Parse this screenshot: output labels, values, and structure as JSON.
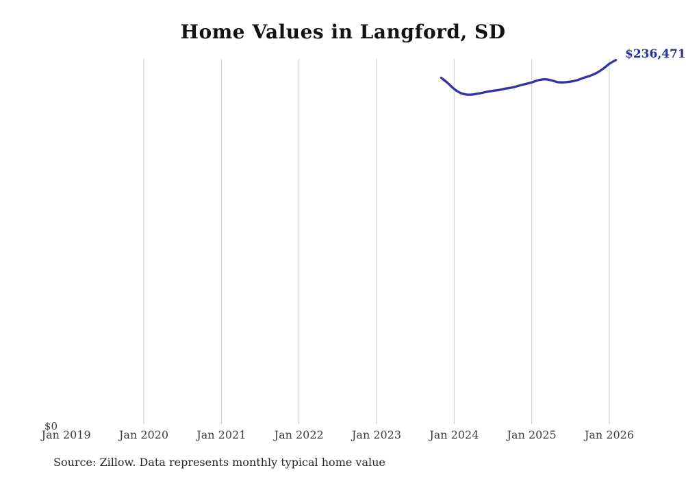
{
  "page": {
    "background": "#ffffff"
  },
  "chart_data": {
    "type": "line",
    "title": "Home Values in Langford, SD",
    "source_note": "Source: Zillow. Data represents monthly typical home value",
    "x_tick_labels": [
      "Jan 2019",
      "Jan 2020",
      "Jan 2021",
      "Jan 2022",
      "Jan 2023",
      "Jan 2024",
      "Jan 2025",
      "Jan 2026"
    ],
    "y_zero_label": "$0",
    "end_label": "$236,471",
    "grid": "vertical-only",
    "legend_position": "none",
    "ylim": [
      0,
      240000
    ],
    "x_range_years": [
      2019,
      2026.17
    ],
    "colors": {
      "line": "#3434a2",
      "end_label": "#2b2e92",
      "gridline": "#cccccc",
      "axis_text": "#3d3d3d",
      "title": "#121212"
    },
    "series": [
      {
        "name": "Typical home value",
        "points": [
          {
            "date": "2023-11",
            "value": 224900
          },
          {
            "date": "2023-12",
            "value": 221500
          },
          {
            "date": "2024-01",
            "value": 217600
          },
          {
            "date": "2024-02",
            "value": 215000
          },
          {
            "date": "2024-03",
            "value": 213900
          },
          {
            "date": "2024-04",
            "value": 214100
          },
          {
            "date": "2024-05",
            "value": 214800
          },
          {
            "date": "2024-06",
            "value": 215700
          },
          {
            "date": "2024-07",
            "value": 216400
          },
          {
            "date": "2024-08",
            "value": 217000
          },
          {
            "date": "2024-09",
            "value": 217900
          },
          {
            "date": "2024-10",
            "value": 218600
          },
          {
            "date": "2024-11",
            "value": 219700
          },
          {
            "date": "2024-12",
            "value": 220800
          },
          {
            "date": "2025-01",
            "value": 221900
          },
          {
            "date": "2025-02",
            "value": 223300
          },
          {
            "date": "2025-03",
            "value": 223900
          },
          {
            "date": "2025-04",
            "value": 223300
          },
          {
            "date": "2025-05",
            "value": 222100
          },
          {
            "date": "2025-06",
            "value": 221900
          },
          {
            "date": "2025-07",
            "value": 222400
          },
          {
            "date": "2025-08",
            "value": 223300
          },
          {
            "date": "2025-09",
            "value": 224800
          },
          {
            "date": "2025-10",
            "value": 226200
          },
          {
            "date": "2025-11",
            "value": 228000
          },
          {
            "date": "2025-12",
            "value": 230700
          },
          {
            "date": "2026-01",
            "value": 234000
          },
          {
            "date": "2026-02",
            "value": 236471
          }
        ]
      }
    ]
  }
}
